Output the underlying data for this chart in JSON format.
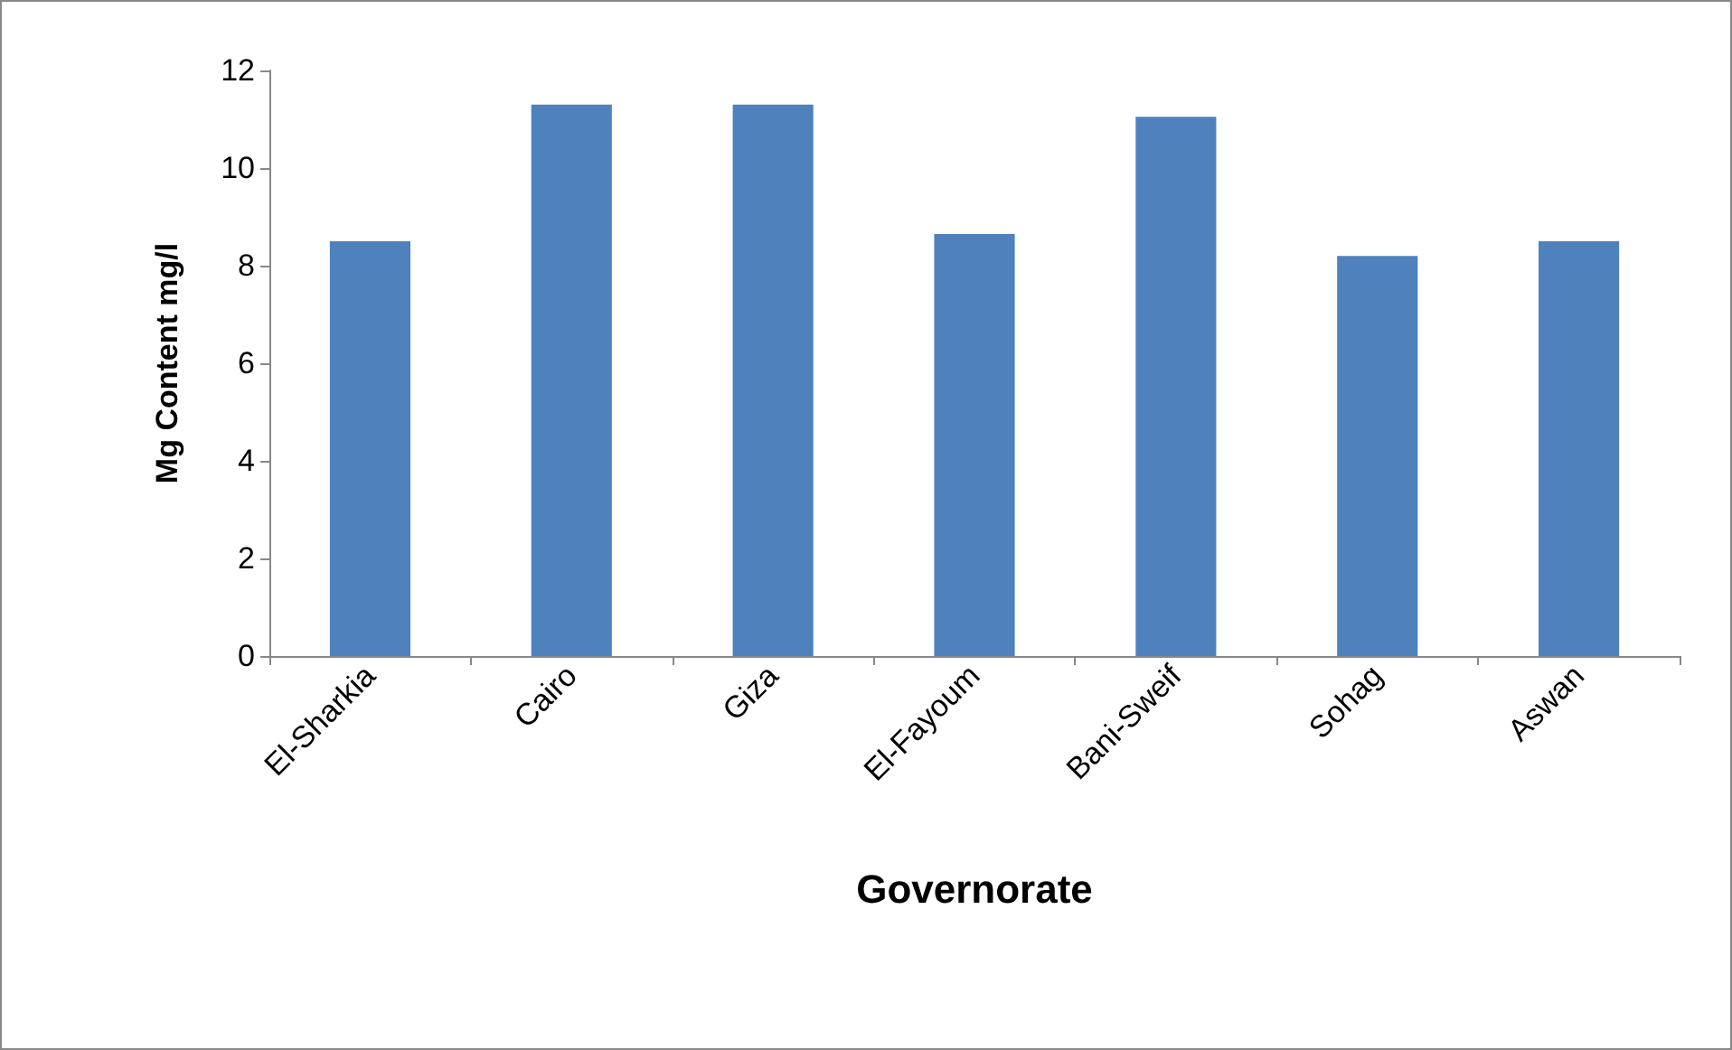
{
  "chart_data": {
    "type": "bar",
    "xlabel": "Governorate",
    "ylabel": "Mg Content mg/l",
    "categories": [
      "El-Sharkia",
      "Cairo",
      "Giza",
      "El-Fayoum",
      "Bani-Sweif",
      "Sohag",
      "Aswan"
    ],
    "values": [
      8.5,
      11.3,
      11.3,
      8.65,
      11.05,
      8.2,
      8.5
    ],
    "color": "#4f81bd",
    "ylim": [
      0,
      12
    ],
    "yticks": [
      0,
      2,
      4,
      6,
      8,
      10,
      12
    ],
    "grid": false
  }
}
